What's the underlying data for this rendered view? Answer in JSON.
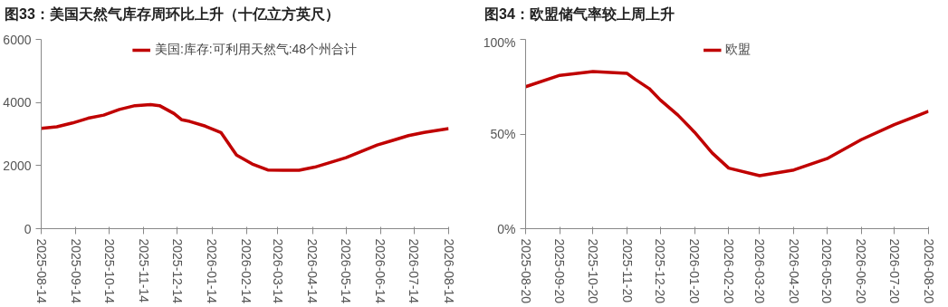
{
  "chart_data": [
    {
      "type": "line",
      "title": "图33：美国天然气库存周环比上升（十亿立方英尺）",
      "x": [
        "2025-08-14",
        "2025-08-28",
        "2025-09-11",
        "2025-09-25",
        "2025-10-09",
        "2025-10-23",
        "2025-11-06",
        "2025-11-20",
        "2025-11-28",
        "2025-12-11",
        "2025-12-18",
        "2025-12-25",
        "2026-01-08",
        "2026-01-22",
        "2026-02-05",
        "2026-02-19",
        "2026-03-05",
        "2026-03-19",
        "2026-04-02",
        "2026-04-16",
        "2026-04-30",
        "2026-05-14",
        "2026-05-28",
        "2026-06-11",
        "2026-06-25",
        "2026-07-09",
        "2026-07-23",
        "2026-08-14"
      ],
      "series": [
        {
          "name": "美国:库存:可利用天然气:48个州合计",
          "color": "#c00000",
          "values": [
            3180,
            3230,
            3350,
            3500,
            3600,
            3780,
            3900,
            3930,
            3900,
            3650,
            3450,
            3400,
            3250,
            3050,
            2330,
            2050,
            1860,
            1850,
            1850,
            1950,
            2100,
            2250,
            2450,
            2650,
            2800,
            2950,
            3050,
            3170
          ]
        }
      ],
      "xlim": [
        "2025-08-14",
        "2026-08-14"
      ],
      "xticks": [
        "2025-08-14",
        "2025-09-14",
        "2025-10-14",
        "2025-11-14",
        "2025-12-14",
        "2026-01-14",
        "2026-02-14",
        "2026-03-14",
        "2026-04-14",
        "2026-05-14",
        "2026-06-14",
        "2026-07-14",
        "2026-08-14"
      ],
      "ylim": [
        0,
        6000
      ],
      "yticks": [
        0,
        2000,
        4000,
        6000
      ],
      "grid": false,
      "legend": "top"
    },
    {
      "type": "line",
      "title": "图34：欧盟储气率较上周上升",
      "x": [
        "2025-08-20",
        "2025-09-20",
        "2025-10-20",
        "2025-11-20",
        "2025-11-27",
        "2025-12-10",
        "2025-12-20",
        "2026-01-05",
        "2026-01-20",
        "2026-02-05",
        "2026-02-20",
        "2026-03-20",
        "2026-04-20",
        "2026-05-20",
        "2026-06-20",
        "2026-07-20",
        "2026-08-20"
      ],
      "series": [
        {
          "name": "欧盟",
          "color": "#c00000",
          "values": [
            75,
            81,
            83,
            82,
            79,
            74,
            68,
            60,
            51,
            40,
            32,
            28,
            31,
            37,
            47,
            55,
            62
          ]
        }
      ],
      "xlim": [
        "2025-08-20",
        "2026-08-20"
      ],
      "xticks": [
        "2025-08-20",
        "2025-09-20",
        "2025-10-20",
        "2025-11-20",
        "2025-12-20",
        "2026-01-20",
        "2026-02-20",
        "2026-03-20",
        "2026-04-20",
        "2026-05-20",
        "2026-06-20",
        "2026-07-20",
        "2026-08-20"
      ],
      "ylim": [
        0,
        100
      ],
      "yticks": [
        {
          "value": 0,
          "label": "0%"
        },
        {
          "value": 50,
          "label": "50%"
        },
        {
          "value": 100,
          "label": "100%"
        }
      ],
      "grid": false,
      "legend": "top"
    }
  ]
}
